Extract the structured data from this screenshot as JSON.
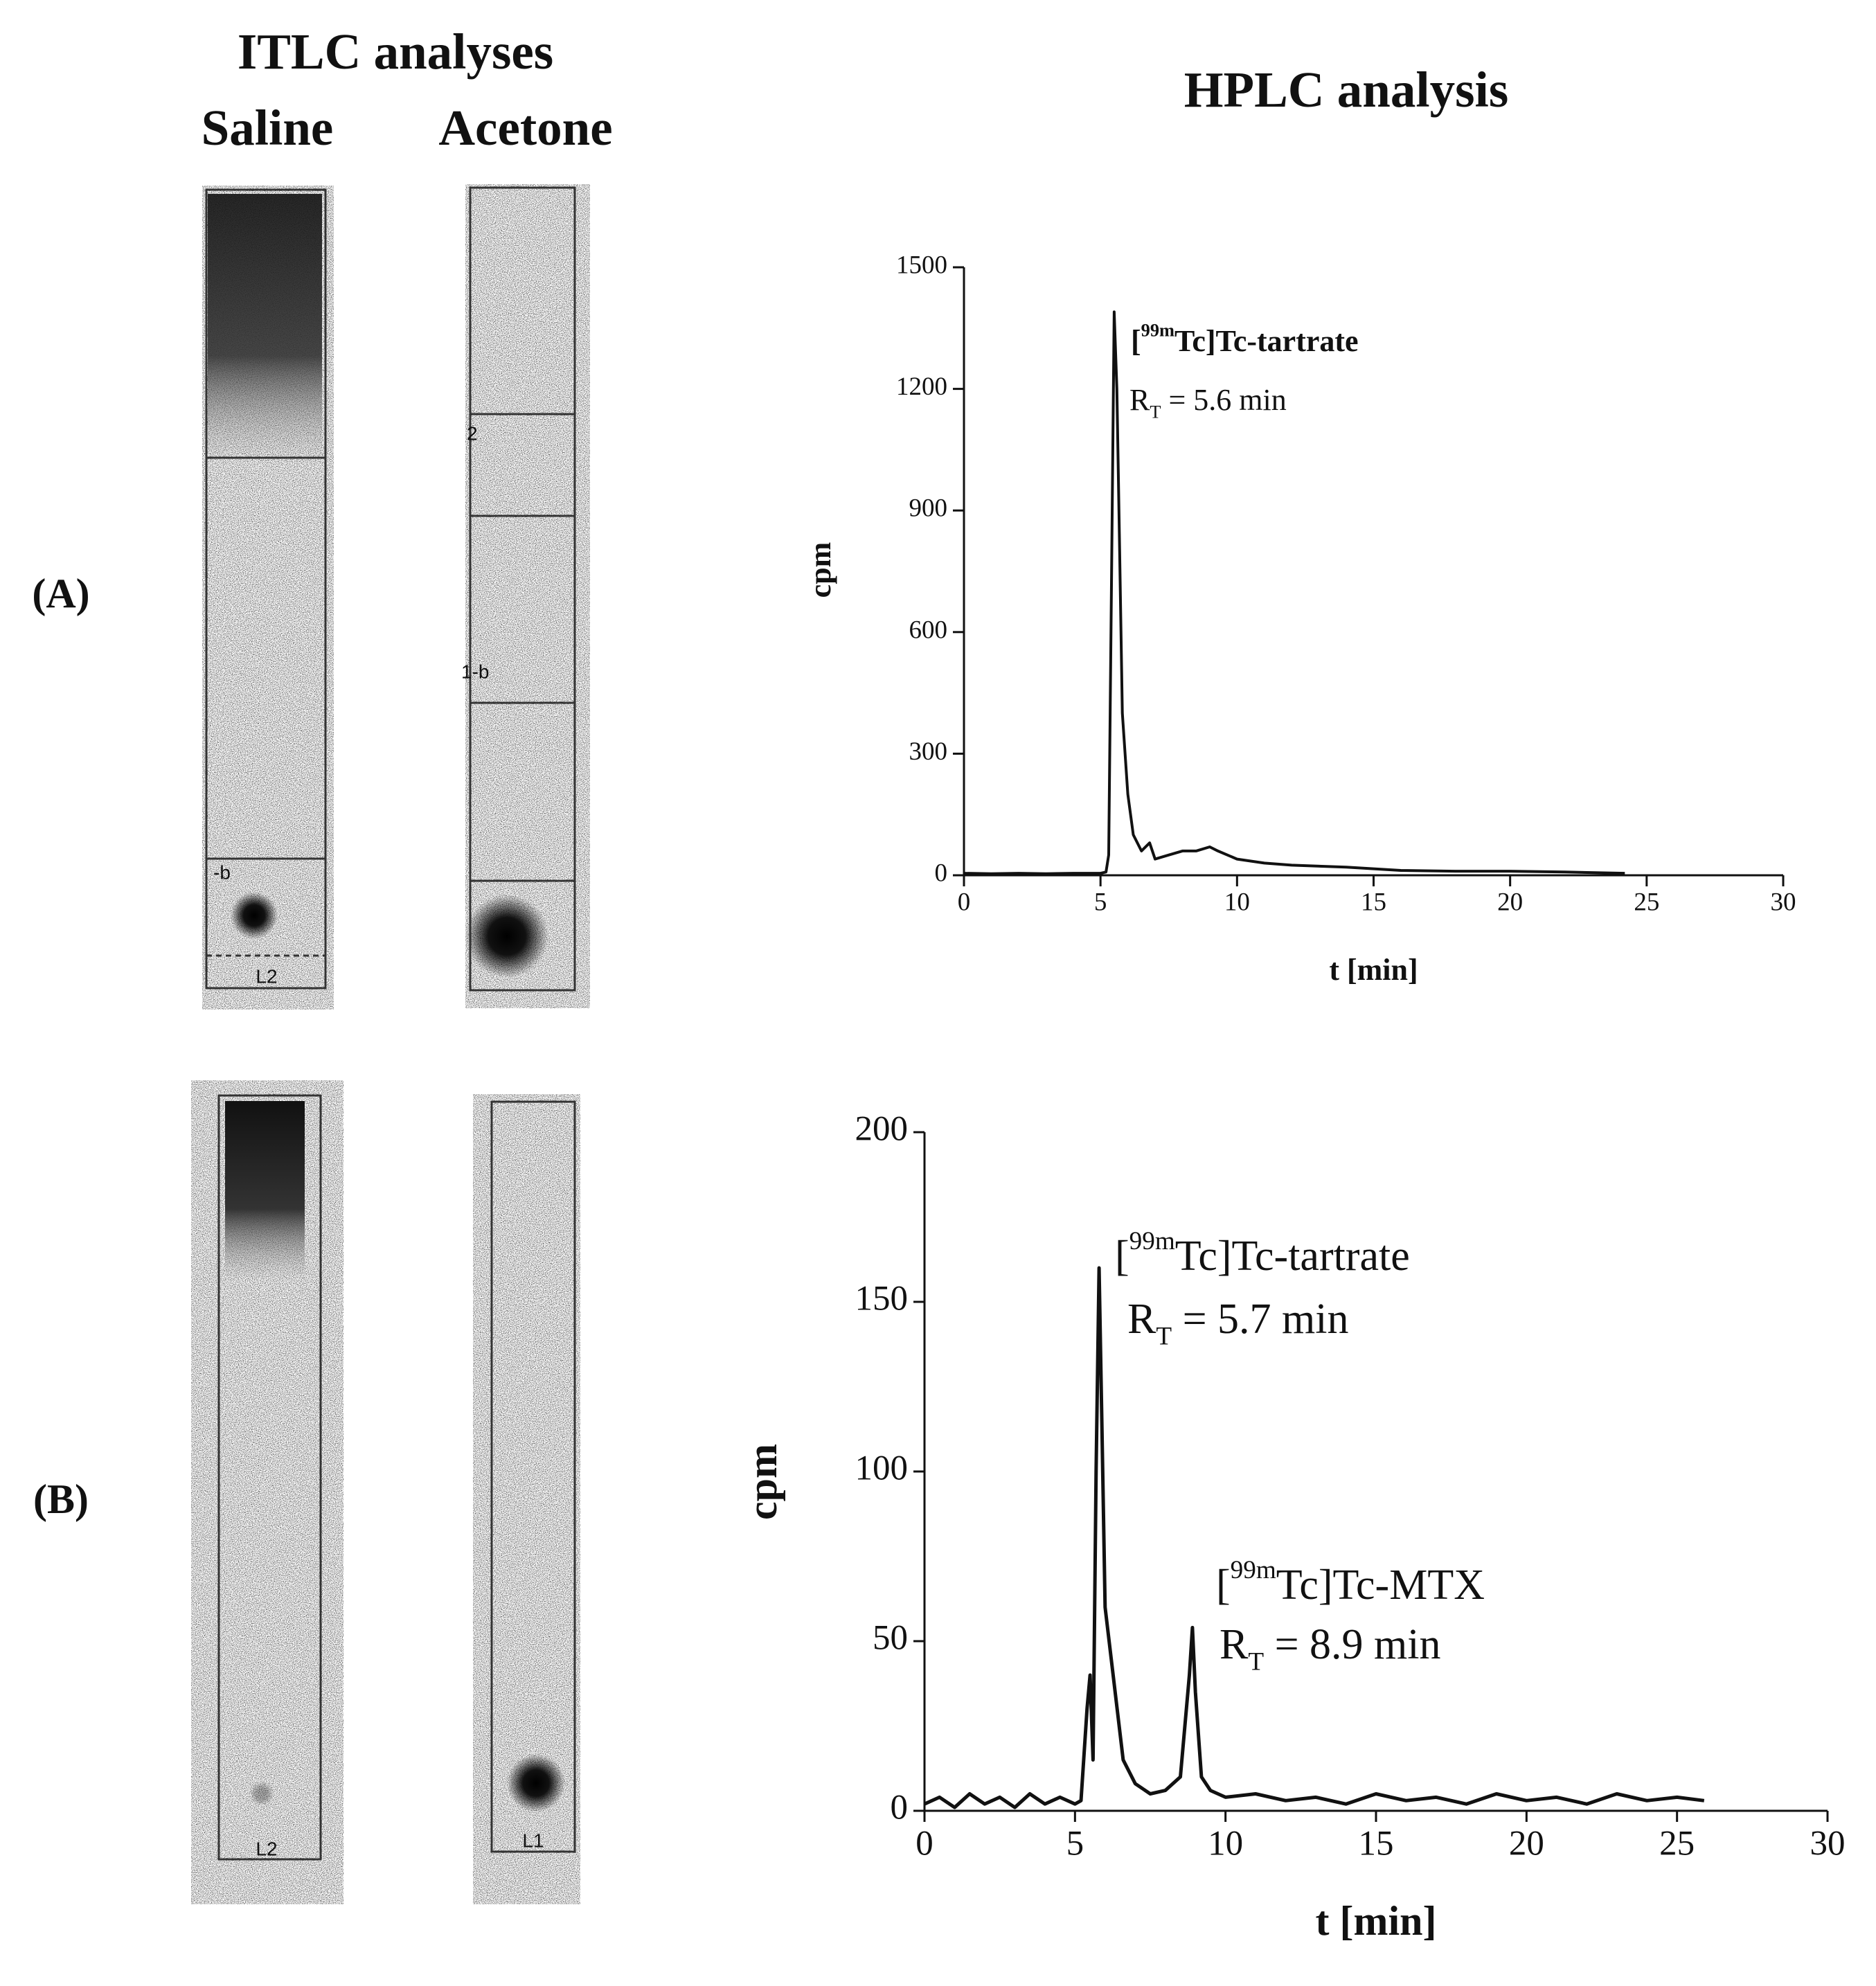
{
  "itlc": {
    "title": "ITLC analyses",
    "columns": [
      "Saline",
      "Acetone"
    ],
    "rows": [
      "(A)",
      "(B)"
    ],
    "strip_labels": [
      "2",
      "1-b",
      "-b",
      "L2",
      "L1"
    ]
  },
  "hplc_title": "HPLC analysis",
  "chart_data": [
    {
      "type": "line",
      "xlabel": "t [min]",
      "ylabel": "cpm",
      "xlim": [
        0,
        30
      ],
      "ylim": [
        0,
        1500
      ],
      "xticks": [
        0,
        5,
        10,
        15,
        20,
        25,
        30
      ],
      "yticks": [
        0,
        300,
        600,
        900,
        1200,
        1500
      ],
      "color": "#111111",
      "x": [
        0,
        1,
        2,
        3,
        4,
        5,
        5.2,
        5.3,
        5.4,
        5.5,
        5.6,
        5.7,
        5.8,
        6.0,
        6.2,
        6.5,
        6.8,
        7.0,
        7.5,
        8,
        8.5,
        9,
        9.3,
        10,
        11,
        12,
        14,
        16,
        18,
        20,
        22,
        24.2
      ],
      "values": [
        5,
        4,
        5,
        4,
        5,
        5,
        8,
        50,
        700,
        1390,
        1200,
        800,
        400,
        200,
        100,
        60,
        80,
        40,
        50,
        60,
        60,
        70,
        60,
        40,
        30,
        25,
        20,
        12,
        10,
        10,
        8,
        5
      ],
      "annotations": [
        {
          "text": [
            "[",
            "99m",
            "Tc]Tc-tartrate"
          ],
          "shift": "sup",
          "bold": true
        },
        {
          "text": [
            "R",
            "T",
            " = 5.6 min"
          ],
          "shift": "sub",
          "bold": false
        }
      ]
    },
    {
      "type": "line",
      "xlabel": "t [min]",
      "ylabel": "cpm",
      "xlim": [
        0,
        30
      ],
      "ylim": [
        0,
        200
      ],
      "xticks": [
        0,
        5,
        10,
        15,
        20,
        25,
        30
      ],
      "yticks": [
        0,
        50,
        100,
        150,
        200
      ],
      "color": "#111111",
      "x": [
        0,
        0.5,
        1,
        1.5,
        2,
        2.5,
        3,
        3.5,
        4,
        4.5,
        5,
        5.2,
        5.4,
        5.5,
        5.6,
        5.7,
        5.8,
        5.9,
        6.0,
        6.2,
        6.4,
        6.6,
        7,
        7.5,
        8,
        8.5,
        8.8,
        8.9,
        9.0,
        9.2,
        9.5,
        10,
        11,
        12,
        13,
        14,
        15,
        16,
        17,
        18,
        19,
        20,
        21,
        22,
        23,
        24,
        25,
        25.9
      ],
      "values": [
        2,
        4,
        1,
        5,
        2,
        4,
        1,
        5,
        2,
        4,
        2,
        3,
        30,
        40,
        15,
        100,
        160,
        110,
        60,
        45,
        30,
        15,
        8,
        5,
        6,
        10,
        40,
        54,
        35,
        10,
        6,
        4,
        5,
        3,
        4,
        2,
        5,
        3,
        4,
        2,
        5,
        3,
        4,
        2,
        5,
        3,
        4,
        3
      ],
      "annotations": [
        {
          "text": [
            "[",
            "99m",
            "Tc]Tc-tartrate"
          ],
          "shift": "sup",
          "bold": false
        },
        {
          "text": [
            "R",
            "T",
            " = 5.7 min"
          ],
          "shift": "sub",
          "bold": false
        },
        {
          "text": [
            "[",
            "99m",
            "Tc]Tc-MTX"
          ],
          "shift": "sup",
          "bold": false
        },
        {
          "text": [
            "R",
            "T",
            " = 8.9 min"
          ],
          "shift": "sub",
          "bold": false
        }
      ]
    }
  ]
}
